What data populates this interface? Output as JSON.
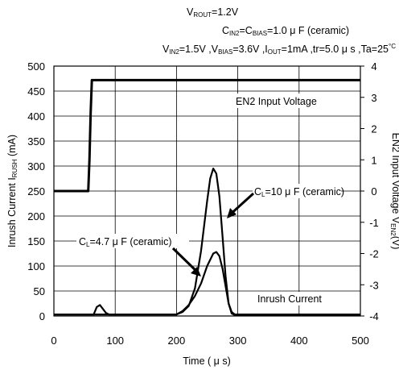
{
  "header": {
    "line1": {
      "a": "V",
      "a_sub": "ROUT",
      "b": "=1.2V"
    },
    "line2": {
      "a": "C",
      "a_sub": "IN2",
      "b": "=C",
      "b_sub": "BIAS",
      "c": "=1.0 μ F (ceramic)"
    },
    "line3": {
      "a": "V",
      "a_sub": "IN2",
      "b": "=1.5V ,V",
      "b_sub": "BIAS",
      "c": "=3.6V ,I",
      "c_sub": "OUT",
      "d": "=1mA ,tr=5.0 μ s ,Ta=25",
      "d_deg": "°C"
    }
  },
  "chart_data": {
    "type": "line",
    "title": "",
    "xlabel": "Time ( μ s)",
    "ylabel": {
      "a": "Inrush Current  I",
      "a_sub": "RUSH",
      "b": " (mA)"
    },
    "y2label": {
      "a": "EN2 Input Voltage  V",
      "a_sub": "EN2",
      "b": "(V)"
    },
    "xlim": [
      0,
      500
    ],
    "ylim": [
      0,
      500
    ],
    "y2lim": [
      -4,
      4
    ],
    "xticks": [
      "0",
      "100",
      "200",
      "300",
      "400",
      "500"
    ],
    "yticks": [
      "0",
      "50",
      "100",
      "150",
      "200",
      "250",
      "300",
      "350",
      "400",
      "450",
      "500"
    ],
    "y2ticks": [
      "-4",
      "-3",
      "-2",
      "-1",
      "0",
      "1",
      "2",
      "3",
      "4"
    ],
    "grid": true,
    "series": [
      {
        "name": "EN2 Input Voltage",
        "axis": "right",
        "x": [
          0,
          56,
          58,
          60,
          62,
          500
        ],
        "y": [
          0,
          0,
          1.0,
          2.5,
          3.55,
          3.55
        ]
      },
      {
        "name": "Inrush Current (CL=10 μF)",
        "axis": "left",
        "x": [
          0,
          200,
          210,
          220,
          230,
          240,
          250,
          255,
          260,
          265,
          270,
          275,
          280,
          285,
          290,
          295,
          300,
          500
        ],
        "y": [
          3,
          3,
          8,
          20,
          55,
          130,
          230,
          275,
          295,
          285,
          240,
          160,
          80,
          25,
          5,
          2,
          2,
          2
        ]
      },
      {
        "name": "Inrush Current (CL=4.7 μF)",
        "axis": "left",
        "x": [
          0,
          65,
          70,
          75,
          80,
          85,
          90,
          200,
          210,
          220,
          230,
          240,
          250,
          260,
          265,
          270,
          275,
          280,
          285,
          290,
          295,
          300,
          500
        ],
        "y": [
          3,
          3,
          18,
          22,
          14,
          6,
          3,
          3,
          10,
          22,
          40,
          65,
          100,
          125,
          128,
          120,
          95,
          60,
          25,
          8,
          3,
          3,
          3
        ]
      }
    ],
    "annotations": {
      "en2": "EN2 Input Voltage",
      "inrush": "Inrush Current",
      "cl10": {
        "a": "C",
        "a_sub": "L",
        "b": "=10 μ F (ceramic)"
      },
      "cl47": {
        "a": "C",
        "a_sub": "L",
        "b": "=4.7 μ F (ceramic)"
      }
    }
  }
}
